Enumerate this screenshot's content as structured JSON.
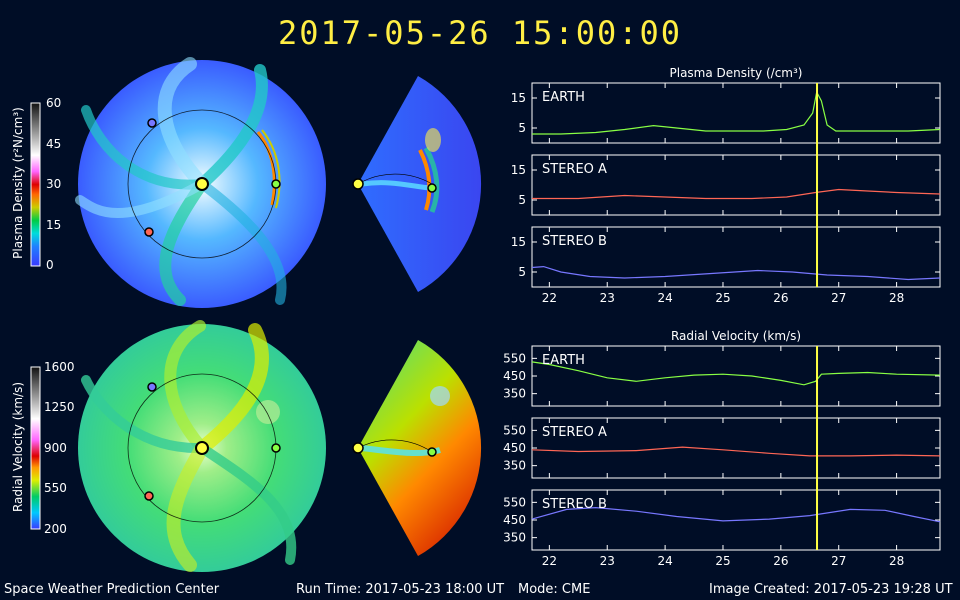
{
  "header": {
    "timestamp": "2017-05-26  15:00:00"
  },
  "footer": {
    "center": "Space Weather Prediction Center",
    "run_time": "Run Time: 2017-05-23 18:00 UT",
    "mode": "Mode: CME",
    "created": "Image Created: 2017-05-23 19:28 UT"
  },
  "colorbars": [
    {
      "label": "Plasma Density (r²N/cm³)",
      "ticks": [
        "60",
        "45",
        "30",
        "15",
        "0"
      ]
    },
    {
      "label": "Radial Velocity (km/s)",
      "ticks": [
        "1600",
        "1250",
        "900",
        "550",
        "200"
      ]
    }
  ],
  "colors": {
    "earth": "#88ff44",
    "stereo_a": "#ff6655",
    "stereo_b": "#7777ff",
    "marker": "#ffff44",
    "title": "#ffee44"
  },
  "chart_data": [
    {
      "type": "line",
      "title": "Plasma Density (/cm³)",
      "xlim": [
        21.7,
        28.75
      ],
      "xticks": [
        22,
        23,
        24,
        25,
        26,
        27,
        28
      ],
      "ylim": [
        0,
        20
      ],
      "yticks": [
        5,
        15
      ],
      "current_time": 26.625,
      "panels": [
        {
          "name": "EARTH",
          "color": "#88ff44",
          "x": [
            21.7,
            22.2,
            22.8,
            23.3,
            23.8,
            24.2,
            24.7,
            25.2,
            25.7,
            26.1,
            26.4,
            26.55,
            26.62,
            26.7,
            26.8,
            26.95,
            27.2,
            27.7,
            28.2,
            28.75
          ],
          "y": [
            3,
            3,
            3.5,
            4.5,
            5.8,
            5,
            4,
            4,
            4,
            4.5,
            6,
            10,
            17,
            14,
            6,
            4,
            4,
            4,
            4,
            4.5
          ]
        },
        {
          "name": "STEREO A",
          "color": "#ff6655",
          "x": [
            21.7,
            22.5,
            23.3,
            24,
            24.7,
            25.5,
            26.1,
            26.6,
            27,
            27.5,
            28,
            28.75
          ],
          "y": [
            5.5,
            5.5,
            6.5,
            6,
            5.5,
            5.5,
            6,
            7.5,
            8.5,
            8,
            7.5,
            7
          ]
        },
        {
          "name": "STEREO B",
          "color": "#7777ff",
          "x": [
            21.7,
            21.9,
            22.2,
            22.7,
            23.3,
            24,
            24.8,
            25.6,
            26.2,
            26.8,
            27.5,
            28.2,
            28.75
          ],
          "y": [
            6.5,
            6.8,
            5,
            3.5,
            3,
            3.5,
            4.5,
            5.5,
            5,
            4,
            3.5,
            2.5,
            3
          ]
        }
      ]
    },
    {
      "type": "line",
      "title": "Radial Velocity (km/s)",
      "xlim": [
        21.7,
        28.75
      ],
      "xticks": [
        22,
        23,
        24,
        25,
        26,
        27,
        28
      ],
      "ylim": [
        280,
        620
      ],
      "yticks": [
        350,
        450,
        550
      ],
      "current_time": 26.625,
      "panels": [
        {
          "name": "EARTH",
          "color": "#88ff44",
          "x": [
            21.7,
            22,
            22.5,
            23,
            23.5,
            24,
            24.5,
            25,
            25.5,
            26,
            26.4,
            26.6,
            26.7,
            27,
            27.5,
            28,
            28.75
          ],
          "y": [
            530,
            515,
            480,
            440,
            420,
            440,
            455,
            460,
            450,
            425,
            400,
            420,
            460,
            465,
            470,
            460,
            455
          ]
        },
        {
          "name": "STEREO A",
          "color": "#ff6655",
          "x": [
            21.7,
            22.5,
            23.5,
            24.3,
            25,
            25.8,
            26.5,
            27.2,
            28,
            28.75
          ],
          "y": [
            440,
            430,
            435,
            455,
            440,
            420,
            405,
            405,
            410,
            405
          ]
        },
        {
          "name": "STEREO B",
          "color": "#7777ff",
          "x": [
            21.7,
            22.3,
            22.8,
            23.5,
            24.2,
            25,
            25.8,
            26.5,
            27.2,
            27.8,
            28.3,
            28.75
          ],
          "y": [
            455,
            510,
            520,
            500,
            470,
            445,
            455,
            475,
            510,
            505,
            470,
            440
          ]
        }
      ]
    }
  ]
}
